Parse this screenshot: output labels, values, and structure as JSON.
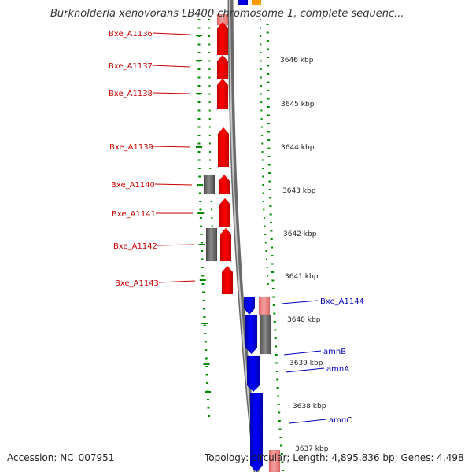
{
  "title": "Burkholderia xenovorans LB400 chromosome 1, complete sequenc...",
  "footer": {
    "accession": "Accession: NC_007951",
    "summary": "Topology: circular; Length: 4,895,836 bp; Genes: 4,498"
  },
  "colors": {
    "forward_cds": "#ff0000",
    "forward_light": "#f08080",
    "reverse_cds": "#0000ff",
    "gray_feature": "#666666",
    "orange_feature": "#ff9900",
    "label_red": "#cc0000",
    "label_blue": "#0000bb",
    "tick_green": "#008800",
    "backbone": "#808080"
  },
  "ruler_labels": [
    "3646 kbp",
    "3645 kbp",
    "3644 kbp",
    "3643 kbp",
    "3642 kbp",
    "3641 kbp",
    "3640 kbp",
    "3639 kbp",
    "3638 kbp",
    "3637 kbp"
  ],
  "genes_left": [
    "Bxe_A1136",
    "Bxe_A1137",
    "Bxe_A1138",
    "Bxe_A1139",
    "Bxe_A1140",
    "Bxe_A1141",
    "Bxe_A1142",
    "Bxe_A1143"
  ],
  "genes_right": [
    "Bxe_A1144",
    "amnB",
    "amnA",
    "amnC"
  ]
}
